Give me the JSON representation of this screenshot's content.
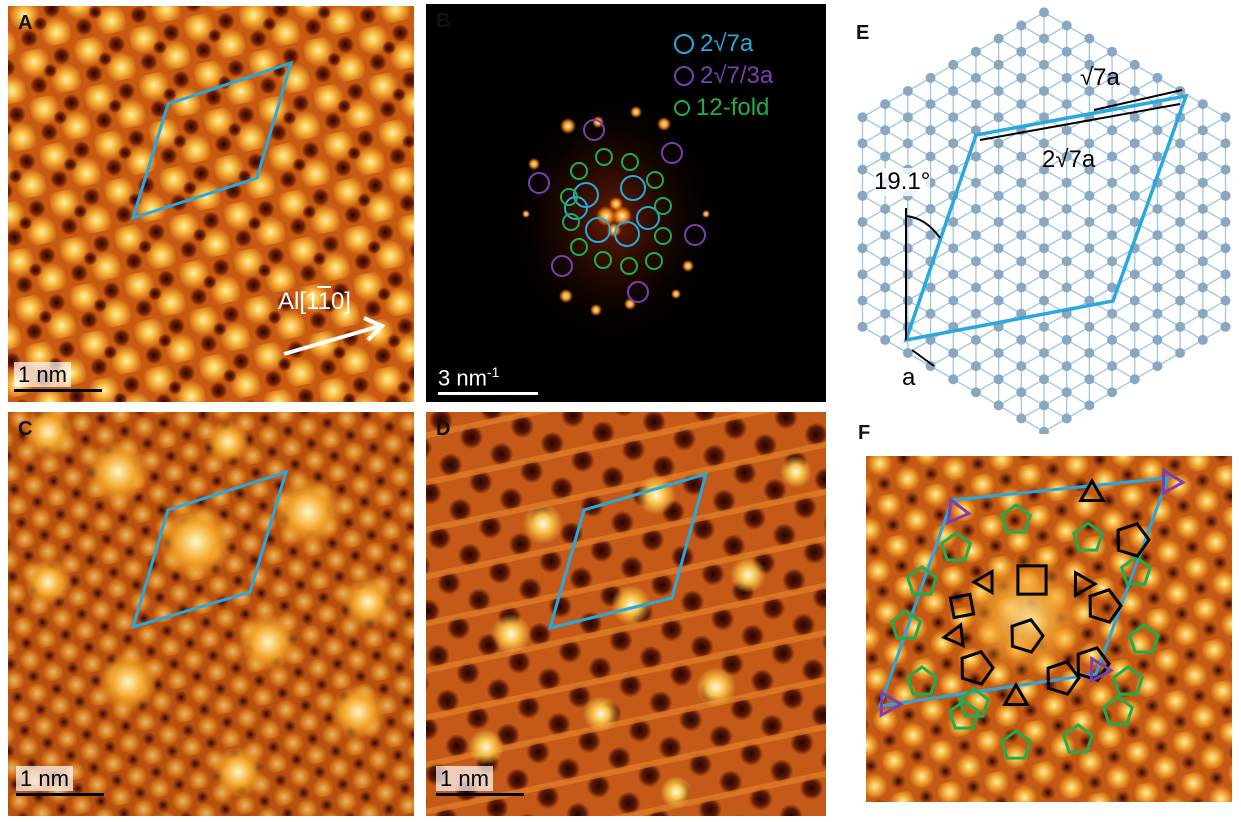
{
  "panels": {
    "A": {
      "label": "A",
      "scale_bar": "1 nm",
      "direction_prefix": "Al[1",
      "direction_bar": "1",
      "direction_suffix": "0]"
    },
    "B": {
      "label": "B",
      "scale_bar": "3 nm",
      "scale_exp": "-1",
      "legend": [
        {
          "text": "2√7a",
          "color": "#29a8e0"
        },
        {
          "text": "2√7/3a",
          "color": "#7a3fb0"
        },
        {
          "text": "12-fold",
          "color": "#1eae4e"
        }
      ]
    },
    "C": {
      "label": "C",
      "scale_bar": "1 nm"
    },
    "D": {
      "label": "D",
      "scale_bar": "1 nm"
    },
    "E": {
      "label": "E",
      "sqrt7a": "√7a",
      "two_sqrt7a": "2√7a",
      "angle": "19.1°",
      "a": "a"
    },
    "F": {
      "label": "F"
    }
  },
  "colors": {
    "cell_outline": "#29a8e0",
    "lattice_node": "#8ba6bf",
    "lattice_line": "#9cc8e6",
    "pentagon_green": "#1eae4e",
    "triangle_purple": "#7a3fb0"
  }
}
